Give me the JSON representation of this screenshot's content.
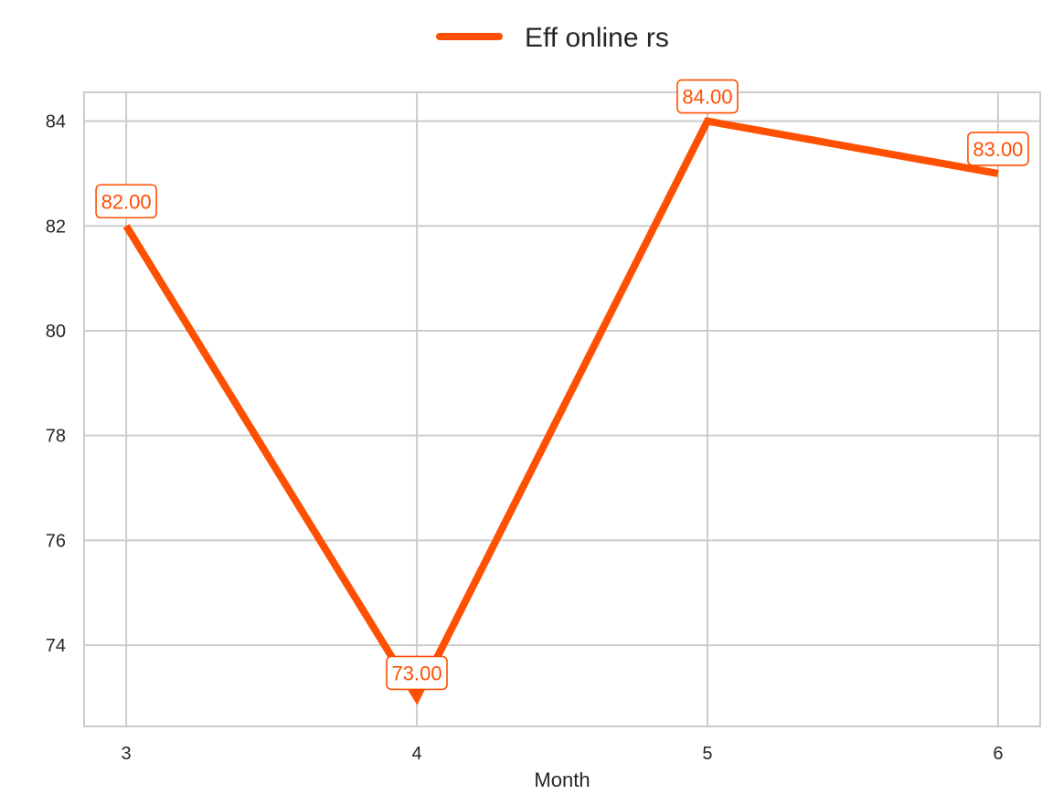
{
  "chart_data": {
    "type": "line",
    "x": [
      3,
      4,
      5,
      6
    ],
    "x_tick_labels": [
      "3",
      "4",
      "5",
      "6"
    ],
    "y_ticks": [
      74,
      76,
      78,
      80,
      82,
      84
    ],
    "y_tick_labels": [
      "74",
      "76",
      "78",
      "80",
      "82",
      "84"
    ],
    "series": [
      {
        "name": "Eff online rs",
        "values": [
          82,
          73,
          84,
          83
        ],
        "labels": [
          "82.00",
          "73.00",
          "84.00",
          "83.00"
        ],
        "color": "#FF4F00"
      }
    ],
    "xlabel": "Month",
    "ylabel": "",
    "xlim": [
      2.855,
      6.145
    ],
    "ylim": [
      72.45,
      84.55
    ],
    "grid": true,
    "legend_position": "top-center"
  },
  "colors": {
    "grid": "#cccccc",
    "spine": "#cccccc",
    "text": "#262626"
  }
}
